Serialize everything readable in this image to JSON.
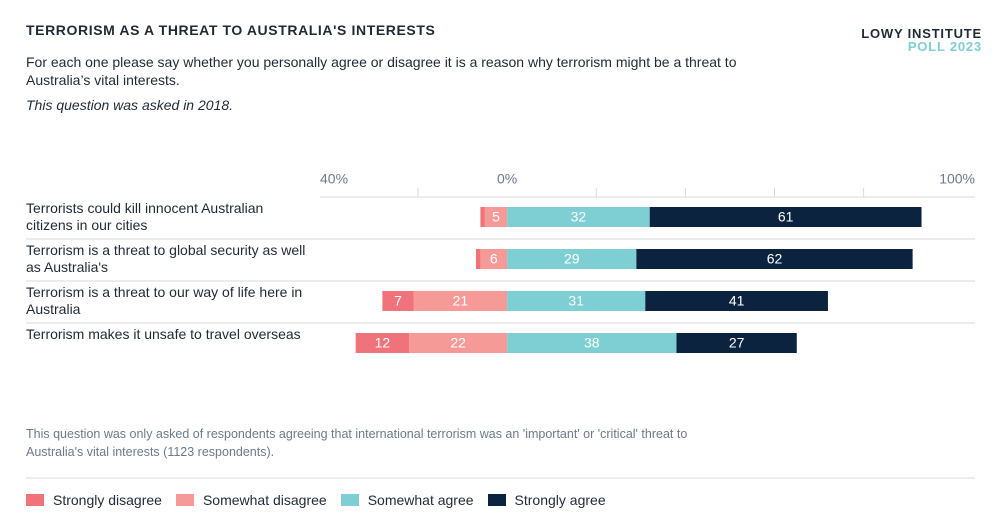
{
  "chart_data": {
    "type": "diverging_bar",
    "title": "TERRORISM AS A THREAT TO AUSTRALIA'S INTERESTS",
    "subtitle": "For each one please say whether you personally agree or disagree it is a reason why terrorism might be a threat to Australia’s vital interests.",
    "note": "This question was asked in 2018.",
    "source": {
      "name": "LOWY INSTITUTE",
      "edition": "POLL 2023"
    },
    "footnote": "This question was only asked of respondents agreeing that international terrorism was an 'important' or 'critical' threat to Australia's vital interests (1123 respondents).",
    "categories": [
      "Terrorists could kill innocent Australian citizens in our cities",
      "Terrorism is a threat to global security as well as Australia's",
      "Terrorism is a threat to our way of life here in Australia",
      "Terrorism makes it unsafe to travel overseas"
    ],
    "series": [
      {
        "name": "Strongly disagree",
        "color": "#f0727a",
        "side": "left",
        "values": [
          1,
          1,
          7,
          12
        ]
      },
      {
        "name": "Somewhat disagree",
        "color": "#f59a97",
        "side": "left",
        "values": [
          5,
          6,
          21,
          22
        ]
      },
      {
        "name": "Somewhat agree",
        "color": "#7dcfd3",
        "side": "right",
        "values": [
          32,
          29,
          31,
          38
        ]
      },
      {
        "name": "Strongly agree",
        "color": "#0c2340",
        "side": "right",
        "values": [
          61,
          62,
          41,
          27
        ]
      }
    ],
    "xlim": [
      -42,
      105
    ],
    "xticks": [
      {
        "value": -40,
        "label": "40%"
      },
      {
        "value": 0,
        "label": "0%"
      },
      {
        "value": 100,
        "label": "100%"
      }
    ],
    "xminor_ticks": [
      -20,
      20,
      40,
      60,
      80
    ]
  }
}
